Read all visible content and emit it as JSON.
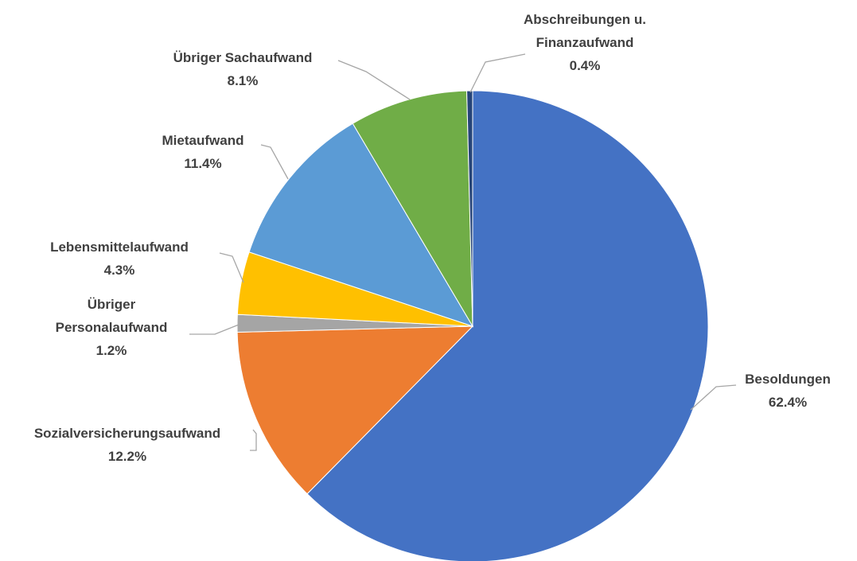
{
  "chart_data": {
    "type": "pie",
    "categories": [
      "Besoldungen",
      "Sozialversicherungsaufwand",
      "Übriger Personalaufwand",
      "Lebensmittelaufwand",
      "Mietaufwand",
      "Übriger Sachaufwand",
      "Abschreibungen u. Finanzaufwand"
    ],
    "values": [
      62.4,
      12.2,
      1.2,
      4.3,
      11.4,
      8.1,
      0.4
    ],
    "value_labels": [
      "62.4%",
      "12.2%",
      "1.2%",
      "4.3%",
      "11.4%",
      "8.1%",
      "0.4%"
    ],
    "colors": [
      "#4472c4",
      "#ed7d31",
      "#a5a5a5",
      "#ffc000",
      "#5b9bd5",
      "#70ad47",
      "#264478"
    ]
  }
}
